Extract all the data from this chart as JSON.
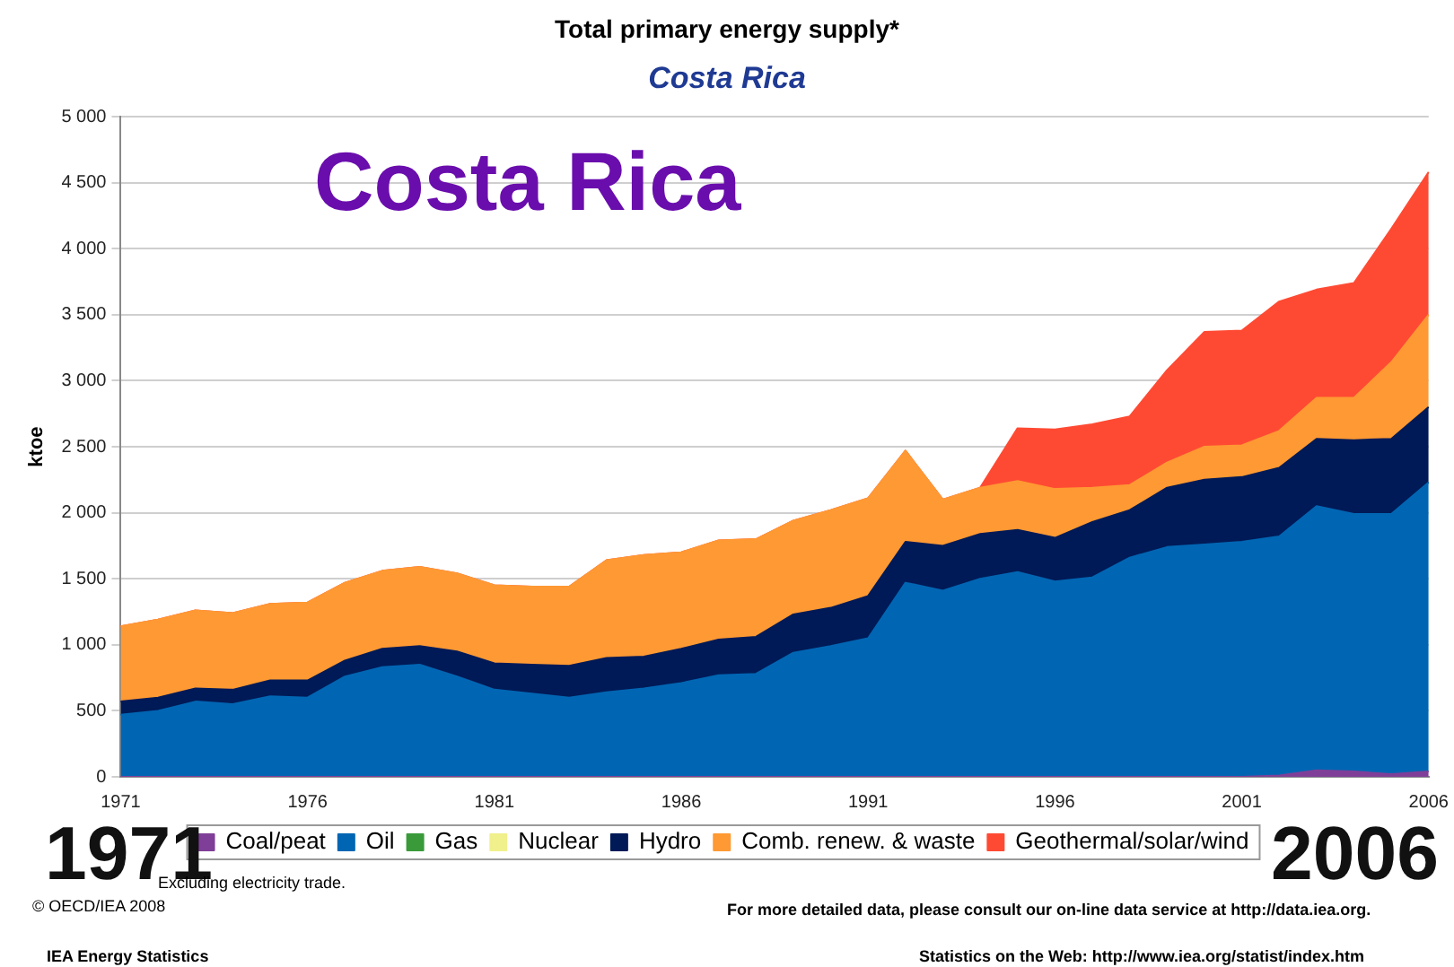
{
  "chart_data": {
    "type": "area",
    "title": "Total primary energy supply*",
    "subtitle": "Costa Rica",
    "ylabel": "ktoe",
    "categories": [
      "1971",
      null,
      null,
      null,
      null,
      "1976",
      null,
      null,
      null,
      null,
      "1981",
      null,
      null,
      null,
      null,
      "1986",
      null,
      null,
      null,
      null,
      "1991",
      null,
      null,
      null,
      null,
      "1996",
      null,
      null,
      null,
      null,
      "2001",
      null,
      null,
      null,
      null,
      "2006"
    ],
    "stacked": true,
    "grid": "y",
    "legend": "bottom",
    "ylim": [
      0,
      5000
    ],
    "yticks": [
      0,
      500,
      {
        "value": 1000,
        "label": "1 000"
      },
      {
        "value": 1500,
        "label": "1 500"
      },
      {
        "value": 2000,
        "label": "2 000"
      },
      {
        "value": 2500,
        "label": "2 500"
      },
      {
        "value": 3000,
        "label": "3 000"
      },
      {
        "value": 3500,
        "label": "3 500"
      },
      {
        "value": 4000,
        "label": "4 000"
      },
      {
        "value": 4500,
        "label": "4 500"
      },
      {
        "value": 5000,
        "label": "5 000"
      }
    ],
    "series": [
      {
        "name": "Coal/peat",
        "color": "#7f3f98",
        "values": [
          0,
          0,
          0,
          0,
          0,
          0,
          0,
          0,
          0,
          0,
          0,
          0,
          0,
          0,
          0,
          0,
          0,
          0,
          0,
          0,
          0,
          0,
          0,
          0,
          0,
          0,
          0,
          0,
          0,
          0,
          0,
          10,
          50,
          40,
          20,
          40
        ]
      },
      {
        "name": "Oil",
        "color": "#0066b3",
        "values": [
          470,
          500,
          570,
          550,
          610,
          600,
          760,
          830,
          850,
          760,
          660,
          630,
          600,
          640,
          670,
          710,
          770,
          780,
          940,
          990,
          1050,
          1470,
          1410,
          1500,
          1550,
          1480,
          1510,
          1660,
          1740,
          1760,
          1780,
          1810,
          2000,
          1950,
          1970,
          2190
        ]
      },
      {
        "name": "Gas",
        "color": "#3a9a3a",
        "values": [
          null,
          null,
          null,
          null,
          null,
          null,
          null,
          null,
          null,
          null,
          null,
          null,
          null,
          null,
          null,
          null,
          null,
          null,
          null,
          null,
          null,
          null,
          null,
          null,
          null,
          null,
          null,
          null,
          null,
          null,
          null,
          null,
          null,
          null,
          null,
          null
        ]
      },
      {
        "name": "Nuclear",
        "color": "#f0f08c",
        "values": [
          null,
          null,
          null,
          null,
          null,
          null,
          null,
          null,
          null,
          null,
          null,
          null,
          null,
          null,
          null,
          null,
          null,
          null,
          null,
          null,
          null,
          null,
          null,
          null,
          null,
          null,
          null,
          null,
          null,
          null,
          null,
          null,
          null,
          null,
          null,
          null
        ]
      },
      {
        "name": "Hydro",
        "color": "#001a57",
        "values": [
          100,
          100,
          100,
          110,
          120,
          130,
          120,
          140,
          140,
          190,
          200,
          220,
          240,
          260,
          240,
          260,
          270,
          280,
          290,
          290,
          320,
          310,
          340,
          340,
          320,
          330,
          420,
          360,
          450,
          490,
          490,
          520,
          510,
          560,
          570,
          570
        ]
      },
      {
        "name": "Comb. renew. & waste",
        "color": "#ff9933",
        "values": [
          570,
          590,
          590,
          580,
          580,
          590,
          590,
          590,
          600,
          590,
          590,
          590,
          600,
          740,
          770,
          730,
          750,
          740,
          710,
          740,
          740,
          690,
          350,
          350,
          370,
          370,
          260,
          190,
          190,
          250,
          240,
          280,
          310,
          320,
          580,
          700
        ]
      },
      {
        "name": "Geothermal/solar/wind",
        "color": "#ff4a33",
        "values": [
          0,
          0,
          0,
          0,
          0,
          0,
          0,
          0,
          0,
          0,
          0,
          0,
          0,
          0,
          0,
          0,
          0,
          0,
          0,
          0,
          0,
          0,
          0,
          0,
          400,
          450,
          480,
          520,
          700,
          870,
          870,
          980,
          820,
          870,
          1010,
          1080
        ]
      }
    ],
    "annotations": [
      "Costa Rica",
      "1971",
      "2006",
      "Excluding electricity trade.",
      "© OECD/IEA 2008",
      "For more detailed data, please consult our on-line data service at http://data.iea.org.",
      "IEA Energy Statistics",
      "Statistics on the Web: http://www.iea.org/statist/index.htm"
    ]
  }
}
